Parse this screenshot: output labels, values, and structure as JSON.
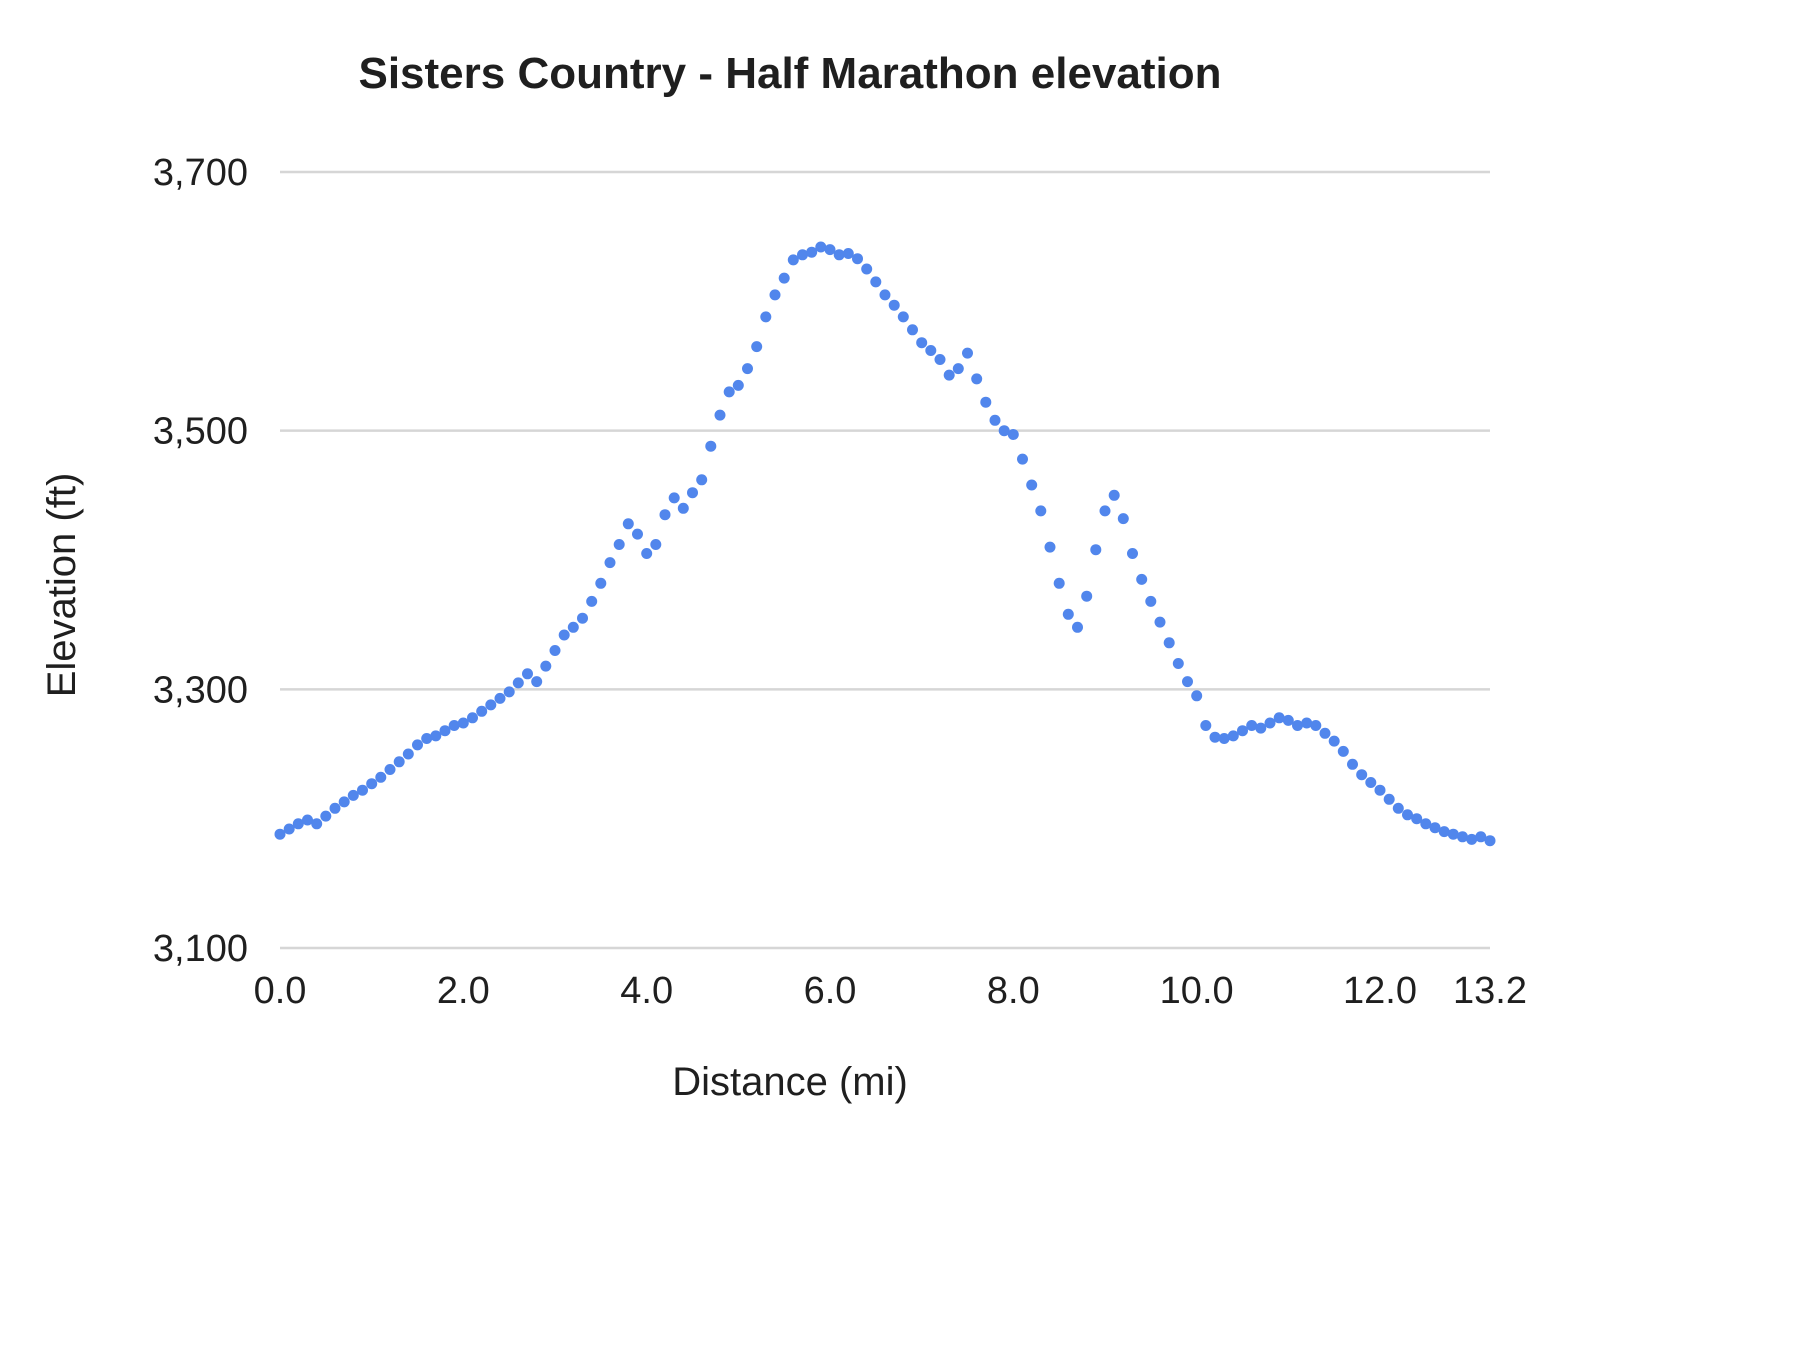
{
  "chart_data": {
    "type": "scatter",
    "title": "Sisters Country - Half Marathon elevation",
    "xlabel": "Distance (mi)",
    "ylabel": "Elevation (ft)",
    "xlim": [
      0,
      13.2
    ],
    "ylim": [
      3100,
      3700
    ],
    "grid": "horizontal",
    "legend": "none",
    "point_color": "#5186ec",
    "grid_color": "#d6d6d6",
    "text_color": "#1f1f1f",
    "background_color": "#ffffff",
    "x_ticks": [
      {
        "v": 0,
        "label": "0.0"
      },
      {
        "v": 2,
        "label": "2.0"
      },
      {
        "v": 4,
        "label": "4.0"
      },
      {
        "v": 6,
        "label": "6.0"
      },
      {
        "v": 8,
        "label": "8.0"
      },
      {
        "v": 10,
        "label": "10.0"
      },
      {
        "v": 12,
        "label": "12.0"
      },
      {
        "v": 13.2,
        "label": "13.2"
      }
    ],
    "y_ticks": [
      {
        "v": 3100,
        "label": "3,100"
      },
      {
        "v": 3300,
        "label": "3,300"
      },
      {
        "v": 3500,
        "label": "3,500"
      },
      {
        "v": 3700,
        "label": "3,700"
      }
    ],
    "series": [
      {
        "name": "elevation",
        "x": [
          0,
          0.1,
          0.2,
          0.3,
          0.4,
          0.5,
          0.6,
          0.7,
          0.8,
          0.9,
          1,
          1.1,
          1.2,
          1.3,
          1.4,
          1.5,
          1.6,
          1.7,
          1.8,
          1.9,
          2,
          2.1,
          2.2,
          2.3,
          2.4,
          2.5,
          2.6,
          2.7,
          2.8,
          2.9,
          3,
          3.1,
          3.2,
          3.3,
          3.4,
          3.5,
          3.6,
          3.7,
          3.8,
          3.9,
          4,
          4.1,
          4.2,
          4.3,
          4.4,
          4.5,
          4.6,
          4.7,
          4.8,
          4.9,
          5,
          5.1,
          5.2,
          5.3,
          5.4,
          5.5,
          5.6,
          5.7,
          5.8,
          5.9,
          6,
          6.1,
          6.2,
          6.3,
          6.4,
          6.5,
          6.6,
          6.7,
          6.8,
          6.9,
          7,
          7.1,
          7.2,
          7.3,
          7.4,
          7.5,
          7.6,
          7.7,
          7.8,
          7.9,
          8,
          8.1,
          8.2,
          8.3,
          8.4,
          8.5,
          8.6,
          8.7,
          8.8,
          8.9,
          9,
          9.1,
          9.2,
          9.3,
          9.4,
          9.5,
          9.6,
          9.7,
          9.8,
          9.9,
          10,
          10.1,
          10.2,
          10.3,
          10.4,
          10.5,
          10.6,
          10.7,
          10.8,
          10.9,
          11,
          11.1,
          11.2,
          11.3,
          11.4,
          11.5,
          11.6,
          11.7,
          11.8,
          11.9,
          12,
          12.1,
          12.2,
          12.3,
          12.4,
          12.5,
          12.6,
          12.7,
          12.8,
          12.9,
          13,
          13.1,
          13.2
        ],
        "y": [
          3188,
          3192,
          3196,
          3199,
          3196,
          3202,
          3208,
          3213,
          3218,
          3222,
          3227,
          3232,
          3238,
          3244,
          3250,
          3257,
          3262,
          3264,
          3268,
          3272,
          3274,
          3278,
          3283,
          3288,
          3293,
          3298,
          3305,
          3312,
          3306,
          3318,
          3330,
          3342,
          3348,
          3355,
          3368,
          3382,
          3398,
          3412,
          3428,
          3420,
          3405,
          3412,
          3435,
          3448,
          3440,
          3452,
          3462,
          3488,
          3512,
          3530,
          3535,
          3548,
          3565,
          3588,
          3605,
          3618,
          3632,
          3636,
          3638,
          3642,
          3640,
          3636,
          3637,
          3633,
          3625,
          3615,
          3605,
          3597,
          3588,
          3578,
          3568,
          3562,
          3555,
          3543,
          3548,
          3560,
          3540,
          3522,
          3508,
          3500,
          3497,
          3478,
          3458,
          3438,
          3410,
          3382,
          3358,
          3348,
          3372,
          3408,
          3438,
          3450,
          3432,
          3405,
          3385,
          3368,
          3352,
          3336,
          3320,
          3306,
          3295,
          3272,
          3263,
          3262,
          3264,
          3268,
          3272,
          3270,
          3274,
          3278,
          3276,
          3272,
          3274,
          3272,
          3266,
          3260,
          3252,
          3242,
          3234,
          3228,
          3222,
          3215,
          3208,
          3203,
          3200,
          3196,
          3193,
          3190,
          3188,
          3186,
          3184,
          3186,
          3183
        ]
      }
    ]
  }
}
